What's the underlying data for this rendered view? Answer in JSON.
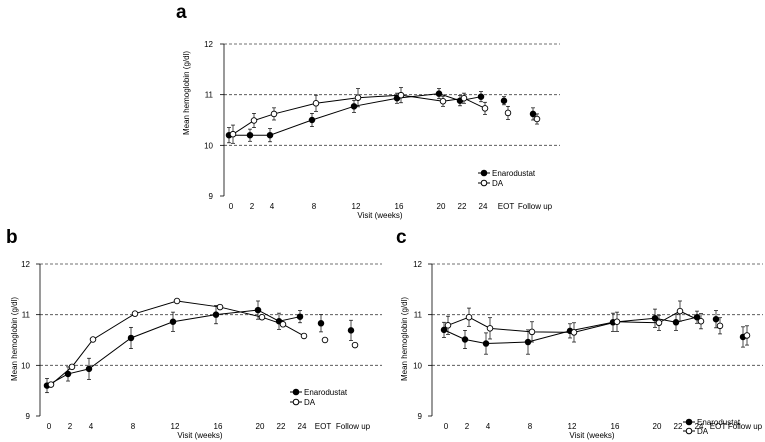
{
  "chart_data": [
    {
      "type": "line",
      "panel": "a",
      "ylabel": "Mean hemoglobin (g/dl)",
      "xlabel": "Visit (weeks)",
      "ylim": [
        9,
        12
      ],
      "yticks": [
        "9",
        "10",
        "11",
        "12"
      ],
      "xtick_labels": [
        "0",
        "2",
        "4",
        "8",
        "12",
        "16",
        "20",
        "22",
        "24",
        "EOT",
        "Follow up"
      ],
      "legend_position": "bottom-right",
      "series": [
        {
          "name": "Enarodustat",
          "marker": "filled",
          "values": [
            10.2,
            10.2,
            10.2,
            10.5,
            10.77,
            10.93,
            11.02,
            10.88,
            10.96,
            10.88,
            10.62
          ],
          "errors": [
            0.15,
            0.12,
            0.13,
            0.13,
            0.12,
            0.1,
            0.1,
            0.1,
            0.1,
            0.08,
            0.12
          ]
        },
        {
          "name": "DA",
          "marker": "open",
          "values": [
            10.22,
            10.49,
            10.62,
            10.83,
            10.94,
            10.99,
            10.87,
            10.93,
            10.73,
            10.64,
            10.52
          ],
          "errors": [
            0.18,
            0.14,
            0.12,
            0.16,
            0.18,
            0.15,
            0.1,
            0.1,
            0.12,
            0.13,
            0.1
          ]
        }
      ]
    },
    {
      "type": "line",
      "panel": "b",
      "ylabel": "Mean hemoglobin (g/dl)",
      "xlabel": "Visit (weeks)",
      "ylim": [
        9,
        12
      ],
      "yticks": [
        "9",
        "10",
        "11",
        "12"
      ],
      "xtick_labels": [
        "0",
        "2",
        "4",
        "8",
        "12",
        "16",
        "20",
        "22",
        "24",
        "EOT",
        "Follow up"
      ],
      "legend_position": "bottom-right",
      "series": [
        {
          "name": "Enarodustat",
          "marker": "filled",
          "values": [
            9.6,
            9.83,
            9.93,
            10.54,
            10.86,
            11.0,
            11.09,
            10.87,
            10.96,
            10.83,
            10.69
          ],
          "errors": [
            0.14,
            0.14,
            0.21,
            0.21,
            0.19,
            0.18,
            0.18,
            0.16,
            0.12,
            0.17,
            0.2
          ]
        },
        {
          "name": "DA",
          "marker": "open",
          "values": [
            9.62,
            9.97,
            10.51,
            11.02,
            11.27,
            11.15,
            10.95,
            10.81,
            10.58,
            10.5,
            10.4
          ]
        }
      ]
    },
    {
      "type": "line",
      "panel": "c",
      "ylabel": "Mean hemoglobin (g/dl)",
      "xlabel": "Visit (weeks)",
      "ylim": [
        9,
        12
      ],
      "yticks": [
        "9",
        "10",
        "11",
        "12"
      ],
      "xtick_labels": [
        "0",
        "2",
        "4",
        "8",
        "12",
        "16",
        "20",
        "22",
        "24",
        "EOT",
        "Follow up"
      ],
      "legend_position": "bottom-right",
      "series": [
        {
          "name": "Enarodustat",
          "marker": "filled",
          "values": [
            10.7,
            10.51,
            10.43,
            10.46,
            10.68,
            10.85,
            10.93,
            10.85,
            10.95,
            10.91,
            10.56
          ],
          "errors": [
            0.15,
            0.18,
            0.21,
            0.24,
            0.14,
            0.18,
            0.18,
            0.16,
            0.12,
            0.17,
            0.2
          ]
        },
        {
          "name": "DA",
          "marker": "open",
          "values": [
            10.79,
            10.95,
            10.73,
            10.66,
            10.65,
            10.86,
            10.84,
            11.07,
            10.87,
            10.78,
            10.59
          ],
          "errors": [
            0.18,
            0.18,
            0.21,
            0.2,
            0.19,
            0.19,
            0.15,
            0.2,
            0.15,
            0.16,
            0.19
          ]
        }
      ]
    }
  ]
}
